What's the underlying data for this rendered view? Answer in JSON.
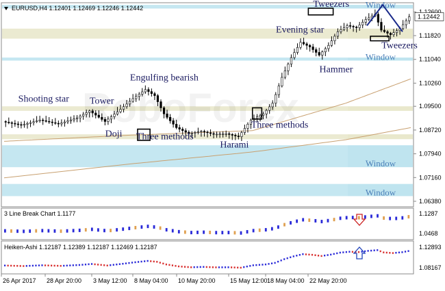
{
  "main_panel": {
    "title": "EURUSD,H4  1.12401 1.12469 1.12246 1.12442",
    "current_price": "1.12442",
    "y_ticks": [
      "1.12600",
      "1.11820",
      "1.11040",
      "1.10260",
      "1.09500",
      "1.08720",
      "1.07940",
      "1.07160",
      "1.06380"
    ],
    "zones": [
      {
        "label": "Window",
        "fill": "#bfe4ef",
        "low": 1.1271,
        "high": 1.1283
      },
      {
        "label": "",
        "fill": "#e9e8cc",
        "low": 1.1172,
        "high": 1.1205
      },
      {
        "label": "Window",
        "fill": "#bfe4ef",
        "low": 1.11,
        "high": 1.111
      },
      {
        "label": "",
        "fill": "#e9e8cc",
        "low": 1.0935,
        "high": 1.095
      },
      {
        "label": "",
        "fill": "#e9e8cc",
        "low": 1.0842,
        "high": 1.0858
      },
      {
        "label": "Window",
        "fill": "#bfe4ef",
        "low": 1.075,
        "high": 1.0822
      },
      {
        "label": "Window",
        "fill": "#bfe4ef",
        "low": 1.0655,
        "high": 1.0695
      }
    ],
    "annotations": [
      {
        "text": "Shooting star",
        "price": 1.0965,
        "bar": 5
      },
      {
        "text": "Tower",
        "price": 1.0958,
        "bar": 28
      },
      {
        "text": "Doji",
        "price": 1.085,
        "bar": 33
      },
      {
        "text": "Engulfing bearish",
        "price": 1.1035,
        "bar": 41
      },
      {
        "text": "Three methods",
        "price": 1.0842,
        "bar": 43
      },
      {
        "text": "Harami",
        "price": 1.0815,
        "bar": 70
      },
      {
        "text": "Three methods",
        "price": 1.088,
        "bar": 80
      },
      {
        "text": "Evening star",
        "price": 1.1192,
        "bar": 88
      },
      {
        "text": "Hammer",
        "price": 1.1062,
        "bar": 102
      },
      {
        "text": "Tweezers",
        "price": 1.1276,
        "bar": 100
      },
      {
        "text": "Tweezers",
        "price": 1.114,
        "bar": 122
      }
    ]
  },
  "line_break_panel": {
    "title": "3 Line Break Chart 1.1177",
    "y_ticks": [
      "1.1287",
      "1.0468"
    ],
    "direction": "down"
  },
  "heiken_ashi_panel": {
    "title": "Heiken-Ashi  1.12187  1.12389  1.12187  1.12469  1.12187",
    "y_ticks": [
      "1.12893",
      "1.08167"
    ],
    "direction": "up"
  },
  "x_axis": {
    "ticks": [
      "26 Apr 2017",
      "28 Apr 20:00",
      "3 May 12:00",
      "8 May 04:00",
      "10 May 20:00",
      "15 May 12:00",
      "18 May 04:00",
      "22 May 20:00"
    ]
  },
  "watermark": "RoboForex",
  "chart_data": {
    "type": "candlestick",
    "symbol": "EURUSD",
    "timeframe": "H4",
    "title": "EURUSD,H4  1.12401 1.12469 1.12246 1.12442",
    "ylim": [
      1.062,
      1.129
    ],
    "x_tick_labels": [
      "26 Apr 2017",
      "28 Apr 20:00",
      "3 May 12:00",
      "8 May 04:00",
      "10 May 20:00",
      "15 May 12:00",
      "18 May 04:00",
      "22 May 20:00"
    ],
    "last_price": 1.12442,
    "close_path": [
      [
        0,
        1.09
      ],
      [
        6,
        1.0888
      ],
      [
        12,
        1.0905
      ],
      [
        18,
        1.0892
      ],
      [
        24,
        1.0912
      ],
      [
        28,
        1.0935
      ],
      [
        33,
        1.09
      ],
      [
        38,
        1.094
      ],
      [
        42,
        1.0975
      ],
      [
        46,
        1.1005
      ],
      [
        49,
        1.0985
      ],
      [
        52,
        1.0925
      ],
      [
        56,
        1.088
      ],
      [
        60,
        1.086
      ],
      [
        64,
        1.0868
      ],
      [
        68,
        1.0858
      ],
      [
        72,
        1.086
      ],
      [
        76,
        1.085
      ],
      [
        80,
        1.0905
      ],
      [
        84,
        1.0925
      ],
      [
        87,
        1.096
      ],
      [
        90,
        1.1045
      ],
      [
        93,
        1.111
      ],
      [
        96,
        1.116
      ],
      [
        99,
        1.1145
      ],
      [
        102,
        1.1118
      ],
      [
        105,
        1.115
      ],
      [
        108,
        1.1195
      ],
      [
        111,
        1.1215
      ],
      [
        114,
        1.1208
      ],
      [
        117,
        1.1235
      ],
      [
        120,
        1.1252
      ],
      [
        122,
        1.12
      ],
      [
        125,
        1.1185
      ],
      [
        128,
        1.1205
      ],
      [
        131,
        1.1244
      ]
    ],
    "moving_averages": [
      {
        "color": "#c8a070",
        "path": [
          [
            0,
            1.0835
          ],
          [
            40,
            1.0855
          ],
          [
            80,
            1.087
          ],
          [
            110,
            1.096
          ],
          [
            131,
            1.104
          ]
        ]
      },
      {
        "color": "#c8a070",
        "path": [
          [
            0,
            1.0715
          ],
          [
            40,
            1.076
          ],
          [
            80,
            1.08
          ],
          [
            110,
            1.084
          ],
          [
            131,
            1.088
          ]
        ]
      }
    ]
  }
}
